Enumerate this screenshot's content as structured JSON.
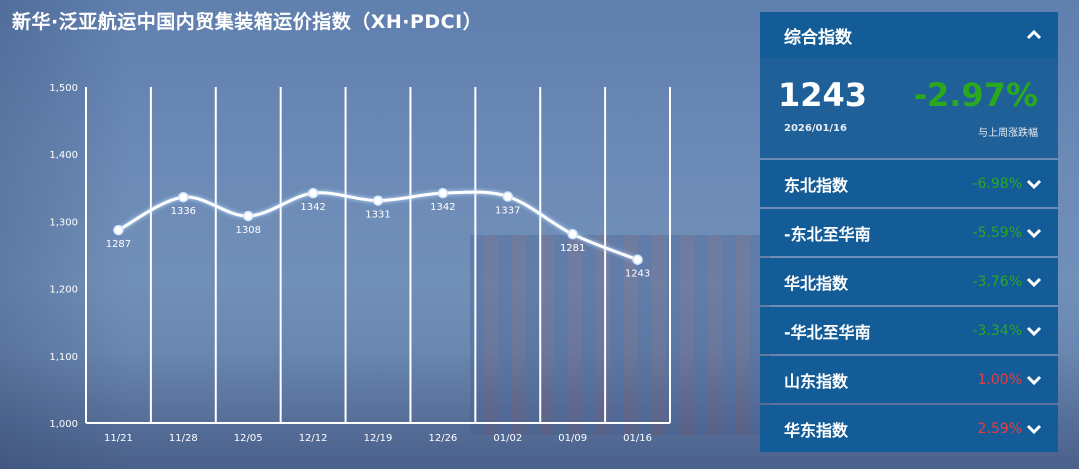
{
  "title": "新华·泛亚航运中国内贸集装箱运价指数（XH·PDCI）",
  "chart_data": {
    "type": "line",
    "categories": [
      "11/21",
      "11/28",
      "12/05",
      "12/12",
      "12/19",
      "12/26",
      "01/02",
      "01/09",
      "01/16"
    ],
    "values": [
      1287,
      1336,
      1308,
      1342,
      1331,
      1342,
      1337,
      1281,
      1243
    ],
    "ylim": [
      1000,
      1500
    ],
    "yticks": [
      "1,000",
      "1,100",
      "1,200",
      "1,300",
      "1,400",
      "1,500"
    ],
    "ytick_values": [
      1000,
      1100,
      1200,
      1300,
      1400,
      1500
    ],
    "grid": "vertical",
    "line_color": "#ffffff"
  },
  "panel": {
    "header": {
      "label": "综合指数",
      "icon": "chevron-up-icon"
    },
    "summary": {
      "value": "1243",
      "change": "-2.97%",
      "date": "2026/01/16",
      "change_label": "与上周涨跌幅",
      "change_color": "#2aa81e"
    },
    "items": [
      {
        "label": "东北指数",
        "change": "-6.98%",
        "color": "#2aa81e"
      },
      {
        "label": "-东北至华南",
        "change": "-5.59%",
        "color": "#2aa81e"
      },
      {
        "label": "华北指数",
        "change": "-3.76%",
        "color": "#2aa81e"
      },
      {
        "label": "-华北至华南",
        "change": "-3.34%",
        "color": "#2aa81e"
      },
      {
        "label": "山东指数",
        "change": "1.00%",
        "color": "#ee3b3b"
      },
      {
        "label": "华东指数",
        "change": "2.59%",
        "color": "#ee3b3b"
      }
    ]
  }
}
